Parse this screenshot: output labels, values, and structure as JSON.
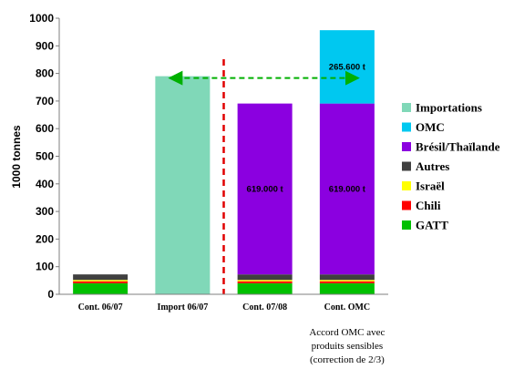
{
  "chart_data": {
    "type": "bar",
    "stacked": true,
    "ylabel": "1000 tonnes",
    "ylim": [
      0,
      1000
    ],
    "yticks": [
      0,
      100,
      200,
      300,
      400,
      500,
      600,
      700,
      800,
      900,
      1000
    ],
    "grid": false,
    "legend_position": "right",
    "categories": [
      "Cont. 06/07",
      "Import 06/07",
      "Cont. 07/08",
      "Cont. OMC"
    ],
    "series": [
      {
        "name": "GATT",
        "color": "#00c000",
        "values": [
          40,
          0,
          40,
          40
        ]
      },
      {
        "name": "Chili",
        "color": "#ff0000",
        "values": [
          7,
          0,
          7,
          7
        ]
      },
      {
        "name": "Israël",
        "color": "#ffff00",
        "values": [
          5,
          0,
          5,
          5
        ]
      },
      {
        "name": "Autres",
        "color": "#404040",
        "values": [
          20,
          0,
          20,
          20
        ]
      },
      {
        "name": "Brésil/Thaïlande",
        "color": "#8b00e0",
        "values": [
          0,
          0,
          619,
          619
        ]
      },
      {
        "name": "OMC",
        "color": "#00c8f0",
        "values": [
          0,
          0,
          0,
          265.6
        ]
      },
      {
        "name": "Importations",
        "color": "#80d8b8",
        "values": [
          0,
          790,
          0,
          0
        ]
      }
    ],
    "data_labels": [
      {
        "category": "Cont. 07/08",
        "series": "Brésil/Thaïlande",
        "text": "619.000 t"
      },
      {
        "category": "Cont. OMC",
        "series": "Brésil/Thaïlande",
        "text": "619.000 t"
      },
      {
        "category": "Cont. OMC",
        "series": "OMC",
        "text": "265.600 t"
      }
    ],
    "legend_order": [
      "Importations",
      "OMC",
      "Brésil/Thaïlande",
      "Autres",
      "Israël",
      "Chili",
      "GATT"
    ],
    "annotations": {
      "divider_after_category": "Import 06/07",
      "divider_color": "#e00000",
      "arrow_from_category": "Import 06/07",
      "arrow_to_category": "Cont. OMC",
      "arrow_value": 790,
      "arrow_color": "#00b000"
    }
  },
  "note": {
    "lines": [
      "Accord OMC avec",
      "produits sensibles",
      "(correction de 2/3)"
    ]
  }
}
